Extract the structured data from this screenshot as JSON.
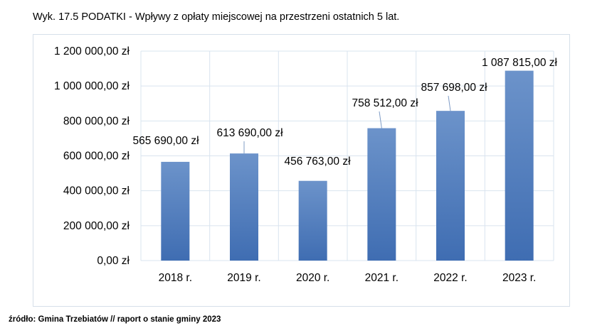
{
  "caption": "Wyk.  17.5 PODATKI - Wpływy z opłaty miejscowej na przestrzeni ostatnich 5 lat.",
  "source": "źródło: Gmina Trzebiatów // raport o stanie gminy 2023",
  "colors": {
    "bar_top": "#6c93ca",
    "bar_bottom": "#3f6db2",
    "grid": "#d9e4ef",
    "frame": "#d6dfe9"
  },
  "chart_data": {
    "type": "bar",
    "categories": [
      "2018 r.",
      "2019 r.",
      "2020 r.",
      "2021 r.",
      "2022 r.",
      "2023 r."
    ],
    "values": [
      565690,
      613690,
      456763,
      758512,
      857698,
      1087815
    ],
    "value_labels": [
      "565 690,00 zł",
      "613 690,00 zł",
      "456 763,00 zł",
      "758 512,00 zł",
      "857 698,00 zł",
      "1 087 815,00 zł"
    ],
    "y_ticks": [
      0,
      200000,
      400000,
      600000,
      800000,
      1000000,
      1200000
    ],
    "y_tick_labels": [
      "0,00 zł",
      "200 000,00 zł",
      "400 000,00 zł",
      "600 000,00 zł",
      "800 000,00 zł",
      "1 000 000,00 zł",
      "1 200 000,00 zł"
    ],
    "ylim": [
      0,
      1200000
    ],
    "grid": true,
    "legend": "none"
  }
}
